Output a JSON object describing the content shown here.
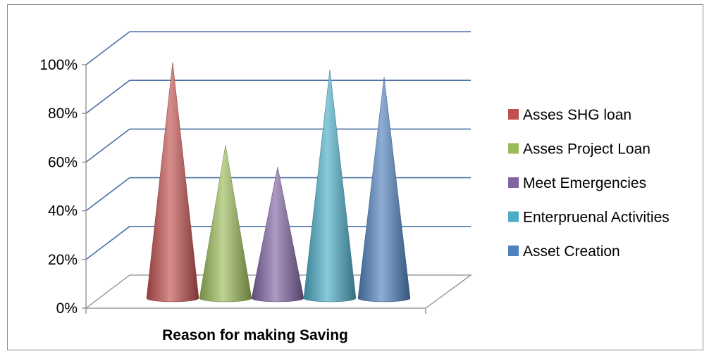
{
  "chart_data": {
    "type": "bar",
    "style": "3d-cone",
    "title": "",
    "xlabel": "Reason for making Saving",
    "ylabel": "",
    "ylim": [
      0,
      1
    ],
    "ytick_labels": [
      "0%",
      "20%",
      "40%",
      "60%",
      "80%",
      "100%"
    ],
    "yticks": [
      0,
      0.2,
      0.4,
      0.6,
      0.8,
      1.0
    ],
    "grid": true,
    "legend_position": "right",
    "categories": [
      "Reason for making Saving"
    ],
    "series": [
      {
        "name": "Asses SHG loan",
        "values": [
          1.0
        ],
        "color": "#c0504d"
      },
      {
        "name": "Asses Project Loan",
        "values": [
          0.66
        ],
        "color": "#9bbb59"
      },
      {
        "name": "Meet Emergencies",
        "values": [
          0.57
        ],
        "color": "#8064a2"
      },
      {
        "name": "Enterpruenal Activities",
        "values": [
          0.97
        ],
        "color": "#4bacc6"
      },
      {
        "name": "Asset Creation",
        "values": [
          0.94
        ],
        "color": "#4f81bd"
      }
    ]
  }
}
